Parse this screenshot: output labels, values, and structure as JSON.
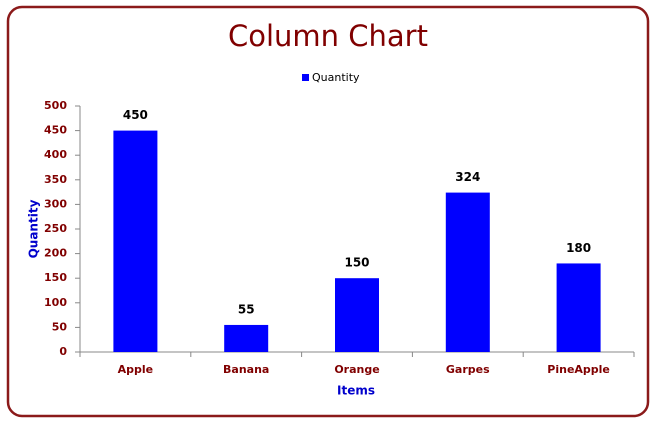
{
  "chart_data": {
    "type": "bar",
    "title": "Column Chart",
    "x_label": "Items",
    "y_label": "Quantity",
    "categories": [
      "Apple",
      "Banana",
      "Orange",
      "Garpes",
      "PineApple"
    ],
    "series": [
      {
        "name": "Quantity",
        "color": "#0000ff",
        "values": [
          450,
          55,
          150,
          324,
          180
        ]
      }
    ],
    "ylim": [
      0,
      500
    ],
    "yticks": [
      0,
      50,
      100,
      150,
      200,
      250,
      300,
      350,
      400,
      450,
      500
    ],
    "legend": "top",
    "data_labels": true
  }
}
